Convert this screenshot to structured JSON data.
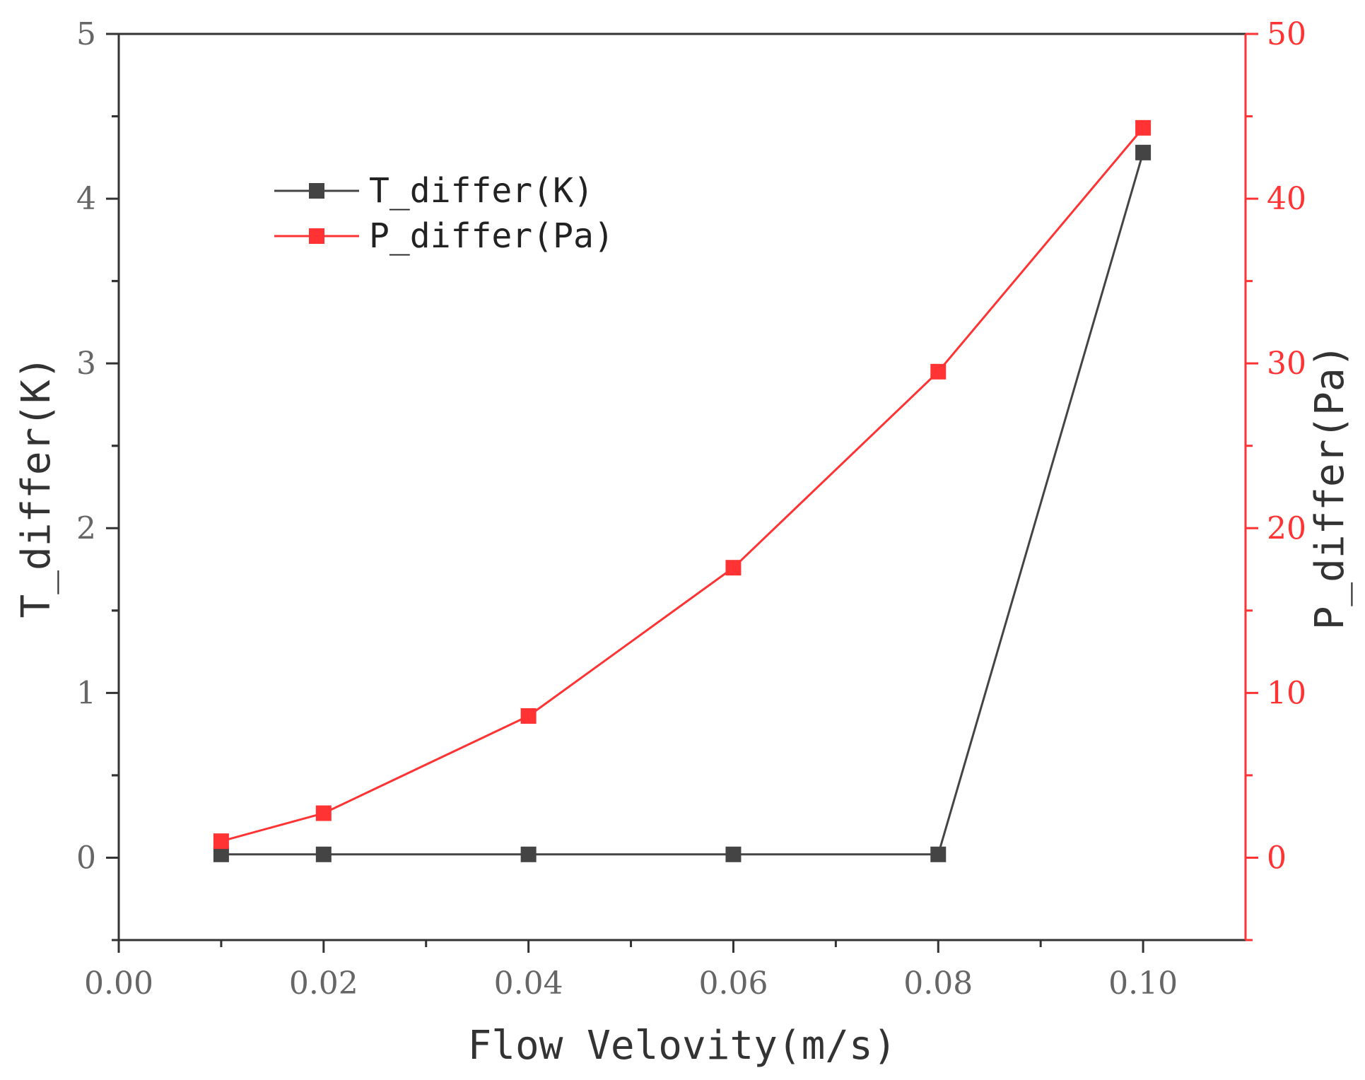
{
  "chart_data": {
    "type": "line",
    "title": "",
    "xlabel": "Flow Velovity(m/s)",
    "ylabel": "T_differ(K)",
    "y2label": "P_differ(Pa)",
    "xlim": [
      0.0,
      0.11
    ],
    "ylim": [
      -0.5,
      5
    ],
    "y2lim": [
      -5,
      50
    ],
    "x_ticks": [
      "0.00",
      "0.02",
      "0.04",
      "0.06",
      "0.08",
      "0.10"
    ],
    "y_ticks": [
      "0",
      "1",
      "2",
      "3",
      "4",
      "5"
    ],
    "y2_ticks": [
      "0",
      "10",
      "20",
      "30",
      "40",
      "50"
    ],
    "grid": false,
    "legend_position": "upper-left",
    "x": [
      0.01,
      0.02,
      0.04,
      0.06,
      0.08,
      0.1
    ],
    "series": [
      {
        "name": "T_differ(K)",
        "axis": "left",
        "color": "#444444",
        "values": [
          0.02,
          0.02,
          0.02,
          0.02,
          0.02,
          4.28
        ]
      },
      {
        "name": "P_differ(Pa)",
        "axis": "right",
        "color": "#ff3333",
        "values": [
          1.0,
          2.7,
          8.6,
          17.6,
          29.5,
          44.3
        ]
      }
    ],
    "colors": {
      "left_axis": "#333333",
      "right_axis": "#ff3333",
      "left_tick_text": "#666666"
    }
  }
}
